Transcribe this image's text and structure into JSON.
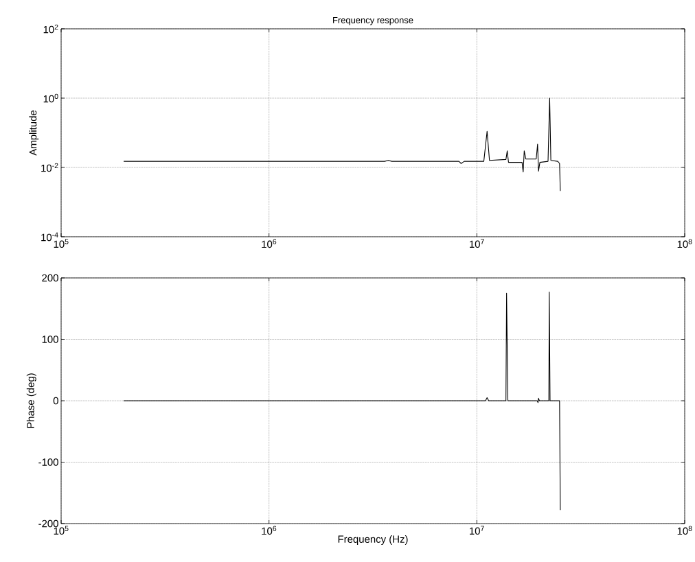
{
  "chart_data": [
    {
      "type": "line",
      "title": "Frequency response",
      "ylabel": "Amplitude",
      "log": "xy",
      "grid": true,
      "line_style": "solid",
      "marker": "none",
      "xlim": [
        100000,
        100000000
      ],
      "ylim": [
        0.0001,
        100
      ],
      "xticks": [
        {
          "value": 100000,
          "label": "10$^{5}$"
        },
        {
          "value": 1000000,
          "label": "10$^{6}$"
        },
        {
          "value": 10000000,
          "label": "10$^{7}$"
        },
        {
          "value": 100000000,
          "label": "10$^{8}$"
        }
      ],
      "yticks": [
        {
          "value": 0.0001,
          "label": "10$^{-4}$"
        },
        {
          "value": 0.01,
          "label": "10$^{-2}$"
        },
        {
          "value": 1,
          "label": "10$^{0}$"
        },
        {
          "value": 100,
          "label": "10$^{2}$"
        }
      ],
      "series": [
        {
          "color": "#000000",
          "x": [
            200000,
            3600000,
            3750000,
            3900000,
            8200000,
            8400000,
            8700000,
            10800000,
            11200000,
            11500000,
            13800000,
            14000000,
            14200000,
            16500000,
            16700000,
            16900000,
            17200000,
            19300000,
            19600000,
            19800000,
            20100000,
            22000000,
            22400000,
            22700000,
            24500000,
            25000000,
            25200000
          ],
          "values": [
            0.015,
            0.015,
            0.016,
            0.015,
            0.015,
            0.013,
            0.015,
            0.015,
            0.11,
            0.016,
            0.017,
            0.03,
            0.014,
            0.014,
            0.0074,
            0.03,
            0.0175,
            0.0175,
            0.047,
            0.0078,
            0.014,
            0.015,
            1.0,
            0.016,
            0.015,
            0.013,
            0.0021
          ]
        }
      ]
    },
    {
      "type": "line",
      "xlabel": "Frequency (Hz)",
      "ylabel": "Phase (deg)",
      "log": "x",
      "grid": true,
      "line_style": "solid",
      "marker": "none",
      "xlim": [
        100000,
        100000000
      ],
      "ylim": [
        -200,
        200
      ],
      "xticks": [
        {
          "value": 100000,
          "label": "10$^{5}$"
        },
        {
          "value": 1000000,
          "label": "10$^{6}$"
        },
        {
          "value": 10000000,
          "label": "10$^{7}$"
        },
        {
          "value": 100000000,
          "label": "10$^{8}$"
        }
      ],
      "yticks": [
        -200,
        -100,
        0,
        100,
        200
      ],
      "series": [
        {
          "color": "#000000",
          "x": [
            200000,
            8000000,
            11000000,
            11200000,
            11400000,
            13800000,
            13900000,
            14100000,
            19500000,
            19700000,
            19800000,
            20000000,
            22200000,
            22300000,
            22500000,
            25000000,
            25200000
          ],
          "values": [
            0,
            0,
            0,
            5,
            0,
            0,
            175,
            0,
            0,
            -3,
            4,
            0,
            0,
            177,
            0,
            0,
            -178
          ]
        }
      ]
    }
  ]
}
